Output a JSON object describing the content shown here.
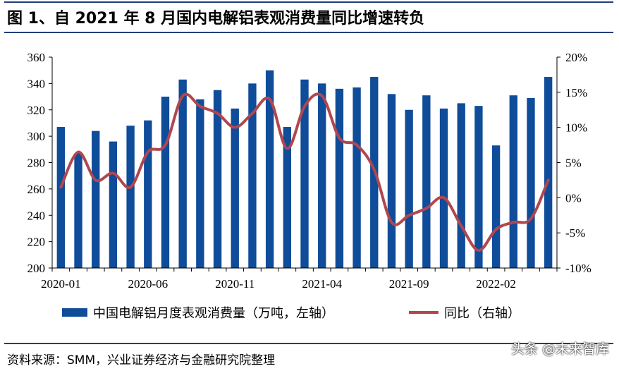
{
  "title": "图 1、自 2021 年 8 月国内电解铝表观消费量同比增速转负",
  "source": "资料来源：SMM，兴业证券经济与金融研究院整理",
  "watermark": "头条 @未来智库",
  "colors": {
    "bar": "#0f4c9a",
    "line": "#b0474f",
    "rule": "#1f3f78"
  },
  "chart_data": {
    "type": "bar",
    "title": "图 1、自 2021 年 8 月国内电解铝表观消费量同比增速转负",
    "ylim_left": [
      200,
      360
    ],
    "yticks_left": [
      "360",
      "340",
      "320",
      "300",
      "280",
      "260",
      "240",
      "220",
      "200"
    ],
    "ylim_right": [
      -10,
      20
    ],
    "yticks_right": [
      "20%",
      "15%",
      "10%",
      "5%",
      "0%",
      "-5%",
      "-10%"
    ],
    "x_labels": [
      "2020-01",
      "2020-06",
      "2020-11",
      "2021-04",
      "2021-09",
      "2022-02"
    ],
    "categories": [
      "2020-01",
      "2020-02",
      "2020-03",
      "2020-04",
      "2020-05",
      "2020-06",
      "2020-07",
      "2020-08",
      "2020-09",
      "2020-10",
      "2020-11",
      "2020-12",
      "2021-01",
      "2021-02",
      "2021-03",
      "2021-04",
      "2021-05",
      "2021-06",
      "2021-07",
      "2021-08",
      "2021-09",
      "2021-10",
      "2021-11",
      "2021-12",
      "2022-01",
      "2022-02",
      "2022-03",
      "2022-04",
      "2022-05"
    ],
    "legend_position": "bottom",
    "grid": false,
    "series": [
      {
        "name": "中国电解铝月度表观消费量（万吨，左轴）",
        "type": "bar",
        "axis": "left",
        "values": [
          307,
          287,
          304,
          296,
          308,
          312,
          330,
          343,
          328,
          335,
          321,
          340,
          350,
          307,
          343,
          340,
          336,
          337,
          345,
          332,
          320,
          331,
          321,
          325,
          323,
          293,
          331,
          329,
          345
        ]
      },
      {
        "name": "同比（右轴）",
        "type": "line",
        "axis": "right",
        "values": [
          1.5,
          6.5,
          2.5,
          3.5,
          1.5,
          6.5,
          7.5,
          14.5,
          13.0,
          12.0,
          10.0,
          12.0,
          14.0,
          7.0,
          13.0,
          14.5,
          8.5,
          7.5,
          4.0,
          -3.5,
          -2.5,
          -1.5,
          0.0,
          -4.0,
          -7.5,
          -4.5,
          -3.5,
          -3.0,
          2.5
        ]
      }
    ]
  }
}
